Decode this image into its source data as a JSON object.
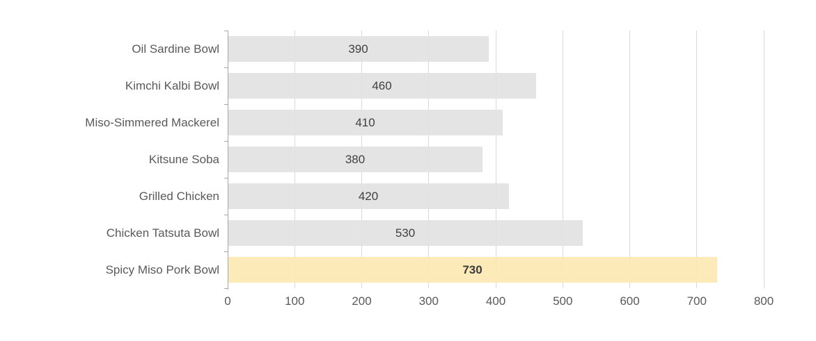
{
  "chart_data": {
    "type": "bar",
    "orientation": "horizontal",
    "title": "",
    "xlabel": "",
    "ylabel": "",
    "categories": [
      "Oil Sardine Bowl",
      "Kimchi Kalbi Bowl",
      "Miso-Simmered Mackerel",
      "Kitsune Soba",
      "Grilled Chicken",
      "Chicken Tatsuta Bowl",
      "Spicy Miso Pork Bowl"
    ],
    "values": [
      390,
      460,
      410,
      380,
      420,
      530,
      730
    ],
    "highlight_index": 6,
    "highlight_category": "Spicy Miso Pork Bowl",
    "xlim": [
      0,
      800
    ],
    "x_ticks": [
      0,
      100,
      200,
      300,
      400,
      500,
      600,
      700,
      800
    ],
    "grid": true,
    "legend": false,
    "value_labels_position": "center",
    "colors": {
      "bar_default": "#e2e2e2",
      "bar_highlight": "#fce9b4",
      "gridline": "#d9d9d9",
      "axis": "#a6a6a6",
      "category_label": "#595959",
      "tick_label": "#595959",
      "value_label": "#404040",
      "value_label_highlight": "#3c3c3c"
    },
    "background": "#ffffff"
  }
}
